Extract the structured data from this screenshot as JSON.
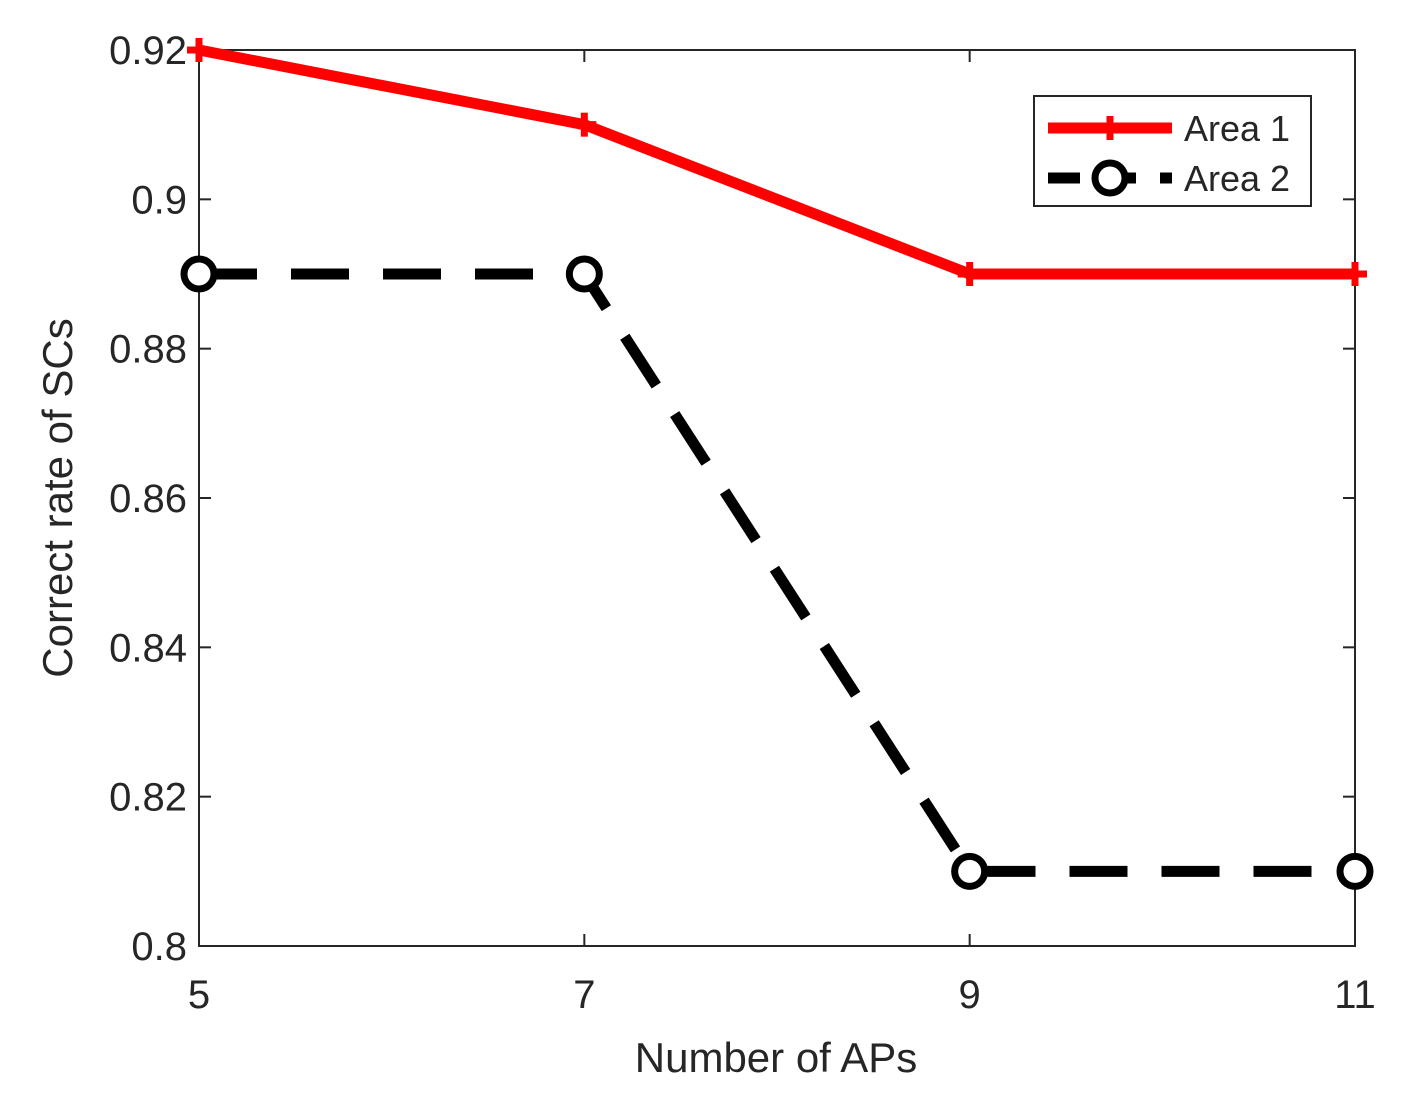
{
  "chart_data": {
    "type": "line",
    "title": "",
    "xlabel": "Number of APs",
    "ylabel": "Correct rate of SCs",
    "x": [
      5,
      7,
      9,
      11
    ],
    "xlim": [
      5,
      11
    ],
    "ylim": [
      0.8,
      0.92
    ],
    "xticks": [
      5,
      7,
      9,
      11
    ],
    "xtick_labels": [
      "5",
      "7",
      "9",
      "11"
    ],
    "yticks": [
      0.8,
      0.82,
      0.84,
      0.86,
      0.88,
      0.9,
      0.92
    ],
    "ytick_labels": [
      "0.8",
      "0.82",
      "0.84",
      "0.86",
      "0.88",
      "0.9",
      "0.92"
    ],
    "grid": false,
    "legend_position": "top-right",
    "series": [
      {
        "name": "Area 1",
        "values": [
          0.92,
          0.91,
          0.89,
          0.89
        ],
        "color": "#ff0000",
        "line_style": "solid",
        "marker": "plus"
      },
      {
        "name": "Area 2",
        "values": [
          0.89,
          0.89,
          0.81,
          0.81
        ],
        "color": "#000000",
        "line_style": "dashed",
        "marker": "circle"
      }
    ]
  }
}
